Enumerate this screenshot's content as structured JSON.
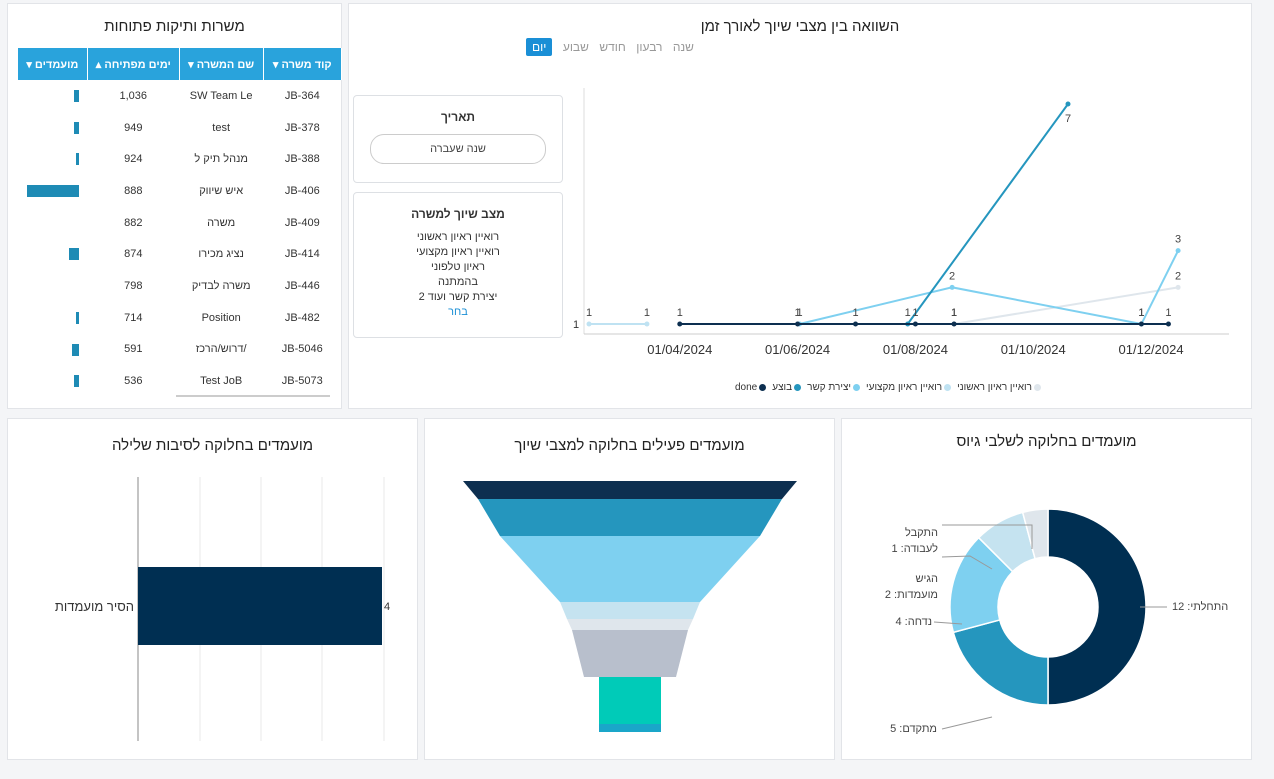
{
  "jobs_panel": {
    "title": "משרות ותיקות פתוחות",
    "columns": [
      "קוד משרה",
      "שם המשרה",
      "ימים מפתיחה",
      "מועמדים"
    ],
    "rows": [
      {
        "code": "JB-364",
        "name": "SW Team Le",
        "days": "1,036",
        "candidates": 0.1
      },
      {
        "code": "JB-378",
        "name": "test",
        "days": "949",
        "candidates": 0.1
      },
      {
        "code": "JB-388",
        "name": "מנהל תיק ל",
        "days": "924",
        "candidates": 0.05
      },
      {
        "code": "JB-406",
        "name": "איש שיווק",
        "days": "888",
        "candidates": 1.0
      },
      {
        "code": "JB-409",
        "name": "משרה",
        "days": "882",
        "candidates": 0
      },
      {
        "code": "JB-414",
        "name": "נציג מכירו",
        "days": "874",
        "candidates": 0.2
      },
      {
        "code": "JB-446",
        "name": "משרה לבדיק",
        "days": "798",
        "candidates": 0
      },
      {
        "code": "JB-482",
        "name": "Position",
        "days": "714",
        "candidates": 0.05
      },
      {
        "code": "JB-5046",
        "name": "דרוש/הרכז/",
        "days": "591",
        "candidates": 0.13
      },
      {
        "code": "JB-5073",
        "name": "Test JoB",
        "days": "536",
        "candidates": 0.1
      }
    ]
  },
  "timeline_panel": {
    "title": "השוואה בין מצבי שיוך לאורך זמן",
    "tabs": [
      "שנה",
      "רבעון",
      "חודש",
      "שבוע",
      "יום"
    ],
    "active_tab": "יום",
    "date_filter": {
      "title": "תאריך",
      "value": "שנה שעברה"
    },
    "status_filter": {
      "title": "מצב שיוך למשרה",
      "items": [
        "רואיין ראיון ראשוני",
        "רואיין ראיון מקצועי",
        "ראיון טלפוני",
        "בהמתנה",
        "יצירת קשר ועוד 2"
      ],
      "link": "בחר"
    },
    "chart_data": {
      "type": "line",
      "x_ticks": [
        "01/04/2024",
        "01/06/2024",
        "01/08/2024",
        "01/10/2024",
        "01/12/2024"
      ],
      "series": [
        {
          "name": "done",
          "color": "#0d2f50",
          "points": [
            [
              "2024-04-01",
              1
            ],
            [
              "2024-06-01",
              1
            ],
            [
              "2024-07-01",
              1
            ],
            [
              "2024-08-01",
              1
            ],
            [
              "2024-08-21",
              1
            ],
            [
              "2024-11-26",
              1
            ],
            [
              "2024-12-10",
              1
            ]
          ]
        },
        {
          "name": "בוצע",
          "color": "#2596be",
          "points": [
            [
              "2024-07-28",
              1
            ],
            [
              "2024-10-19",
              7
            ]
          ]
        },
        {
          "name": "יצירת קשר",
          "color": "#7ed0f0",
          "points": [
            [
              "2024-06-02",
              1
            ],
            [
              "2024-08-20",
              2
            ],
            [
              "2024-11-26",
              1
            ],
            [
              "2024-12-15",
              3
            ]
          ]
        },
        {
          "name": "רואיין ראיון מקצועי",
          "color": "#bfe2f2",
          "points": [
            [
              "2024-02-14",
              1
            ],
            [
              "2024-03-15",
              1
            ]
          ]
        },
        {
          "name": "רואיין ראיון ראשוני",
          "color": "#dfe6ec",
          "points": [
            [
              "2024-08-21",
              1
            ],
            [
              "2024-12-15",
              2
            ]
          ]
        }
      ],
      "y_start_label": "1"
    }
  },
  "rejection_panel": {
    "title": "מועמדים בחלוקה לסיבות שלילה",
    "chart_data": {
      "type": "bar",
      "categories": [
        "הסיר מועמדות"
      ],
      "values": [
        4
      ],
      "color": "#002f52"
    }
  },
  "funnel_panel": {
    "title": "מועמדים פעילים בחלוקה למצבי שיוך",
    "colors": [
      "#0d2f50",
      "#2596be",
      "#7ed0f0",
      "#c5e3f0",
      "#dfe6ec",
      "#b8bfcc",
      "#00cbb8",
      "#1aa6c9"
    ]
  },
  "donut_panel": {
    "title": "מועמדים בחלוקה לשלבי גיוס",
    "chart_data": {
      "type": "pie",
      "slices": [
        {
          "label": "התחלתי: 12",
          "value": 12,
          "color": "#002f52"
        },
        {
          "label": "מתקדם: 5",
          "value": 5,
          "color": "#2596be"
        },
        {
          "label": "נדחה: 4",
          "value": 4,
          "color": "#7ed0f0"
        },
        {
          "label": "הגיש מועמדות: 2",
          "value": 2,
          "color": "#c5e3f0"
        },
        {
          "label": "התקבל לעבודה: 1",
          "value": 1,
          "color": "#dfe6ec"
        }
      ]
    }
  }
}
